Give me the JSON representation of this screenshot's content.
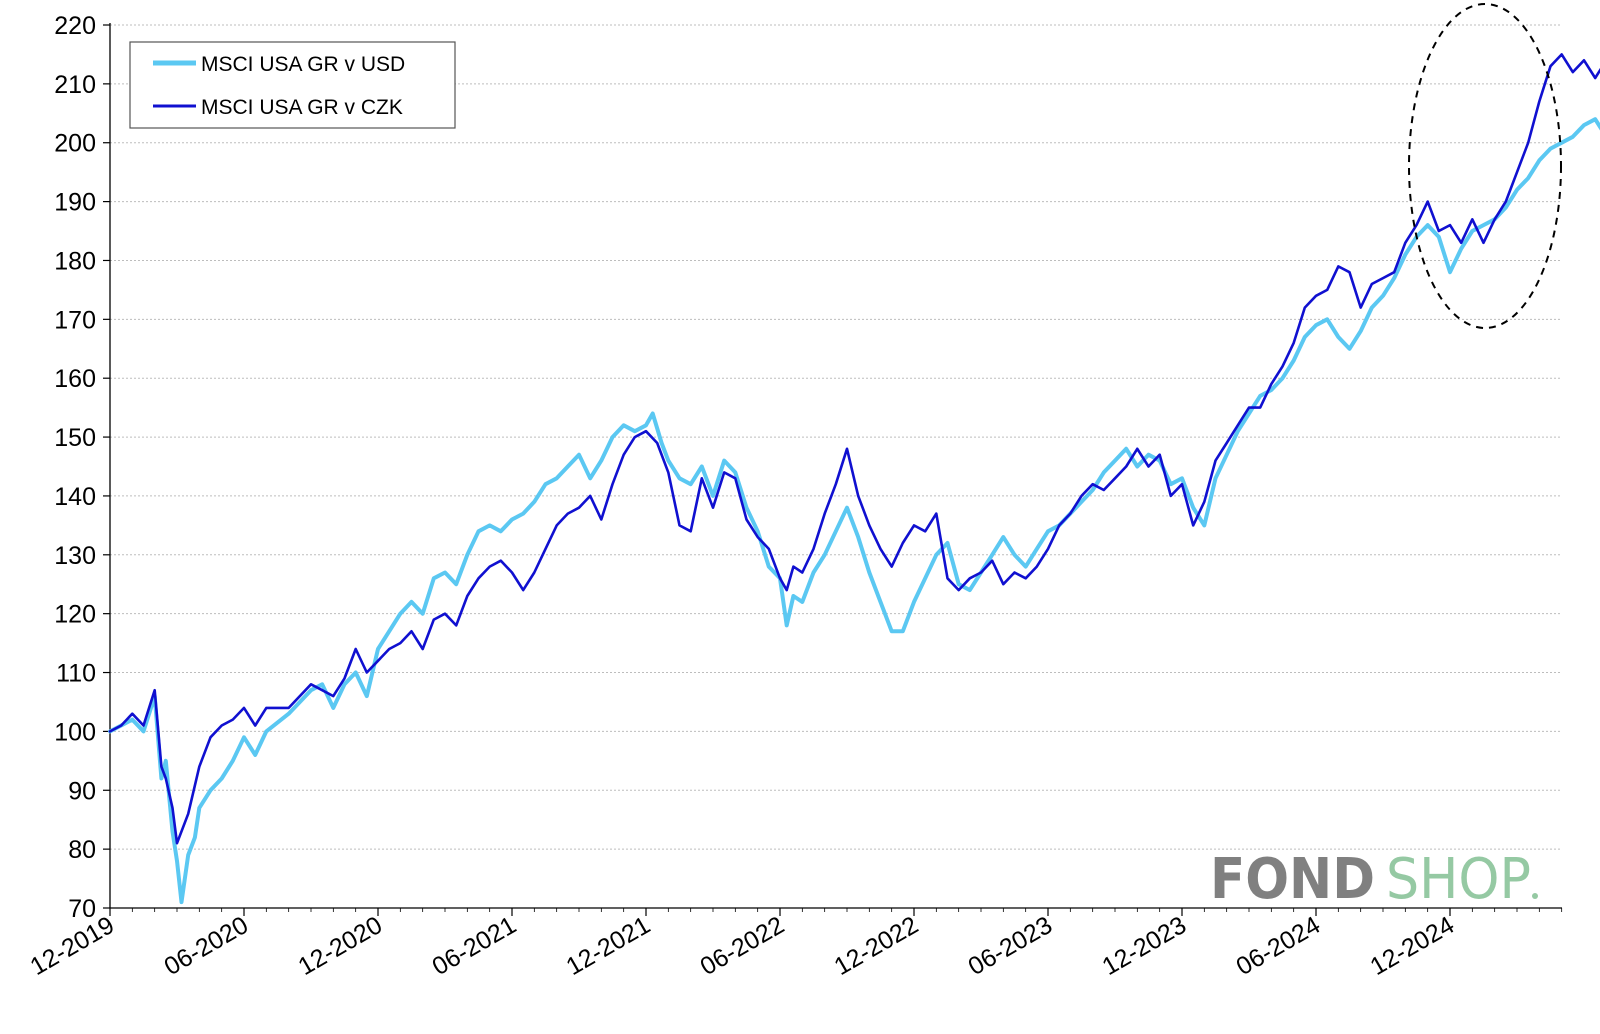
{
  "chart_data": {
    "type": "line",
    "title": "",
    "xlabel": "",
    "ylabel": "",
    "ylim": [
      70,
      220
    ],
    "yticks": [
      70,
      80,
      90,
      100,
      110,
      120,
      130,
      140,
      150,
      160,
      170,
      180,
      190,
      200,
      210,
      220
    ],
    "x_tick_labels": [
      "12-2019",
      "06-2020",
      "12-2020",
      "06-2021",
      "12-2021",
      "06-2022",
      "12-2022",
      "06-2023",
      "12-2023",
      "06-2024",
      "12-2024"
    ],
    "x_range_months": [
      0,
      65
    ],
    "grid": "horizontal-dotted",
    "legend_position": "top-left",
    "series": [
      {
        "name": "MSCI USA GR v USD",
        "color": "#5bc8f2",
        "points": [
          [
            0,
            100
          ],
          [
            0.5,
            101
          ],
          [
            1,
            102
          ],
          [
            1.5,
            100
          ],
          [
            2,
            106
          ],
          [
            2.3,
            92
          ],
          [
            2.5,
            95
          ],
          [
            2.8,
            83
          ],
          [
            3,
            78
          ],
          [
            3.2,
            71
          ],
          [
            3.5,
            79
          ],
          [
            3.8,
            82
          ],
          [
            4,
            87
          ],
          [
            4.5,
            90
          ],
          [
            5,
            92
          ],
          [
            5.5,
            95
          ],
          [
            6,
            99
          ],
          [
            6.5,
            96
          ],
          [
            7,
            100
          ],
          [
            8,
            103
          ],
          [
            9,
            107
          ],
          [
            9.5,
            108
          ],
          [
            10,
            104
          ],
          [
            10.5,
            108
          ],
          [
            11,
            110
          ],
          [
            11.5,
            106
          ],
          [
            12,
            114
          ],
          [
            12.5,
            117
          ],
          [
            13,
            120
          ],
          [
            13.5,
            122
          ],
          [
            14,
            120
          ],
          [
            14.5,
            126
          ],
          [
            15,
            127
          ],
          [
            15.5,
            125
          ],
          [
            16,
            130
          ],
          [
            16.5,
            134
          ],
          [
            17,
            135
          ],
          [
            17.5,
            134
          ],
          [
            18,
            136
          ],
          [
            18.5,
            137
          ],
          [
            19,
            139
          ],
          [
            19.5,
            142
          ],
          [
            20,
            143
          ],
          [
            20.5,
            145
          ],
          [
            21,
            147
          ],
          [
            21.5,
            143
          ],
          [
            22,
            146
          ],
          [
            22.5,
            150
          ],
          [
            23,
            152
          ],
          [
            23.5,
            151
          ],
          [
            24,
            152
          ],
          [
            24.3,
            154
          ],
          [
            24.7,
            149
          ],
          [
            25,
            146
          ],
          [
            25.5,
            143
          ],
          [
            26,
            142
          ],
          [
            26.5,
            145
          ],
          [
            27,
            140
          ],
          [
            27.5,
            146
          ],
          [
            28,
            144
          ],
          [
            28.5,
            138
          ],
          [
            29,
            134
          ],
          [
            29.5,
            128
          ],
          [
            30,
            126
          ],
          [
            30.3,
            118
          ],
          [
            30.6,
            123
          ],
          [
            31,
            122
          ],
          [
            31.5,
            127
          ],
          [
            32,
            130
          ],
          [
            32.5,
            134
          ],
          [
            33,
            138
          ],
          [
            33.5,
            133
          ],
          [
            34,
            127
          ],
          [
            34.5,
            122
          ],
          [
            35,
            117
          ],
          [
            35.5,
            117
          ],
          [
            36,
            122
          ],
          [
            36.5,
            126
          ],
          [
            37,
            130
          ],
          [
            37.5,
            132
          ],
          [
            38,
            125
          ],
          [
            38.5,
            124
          ],
          [
            39,
            127
          ],
          [
            39.5,
            130
          ],
          [
            40,
            133
          ],
          [
            40.5,
            130
          ],
          [
            41,
            128
          ],
          [
            41.5,
            131
          ],
          [
            42,
            134
          ],
          [
            42.5,
            135
          ],
          [
            43,
            137
          ],
          [
            43.5,
            139
          ],
          [
            44,
            141
          ],
          [
            44.5,
            144
          ],
          [
            45,
            146
          ],
          [
            45.5,
            148
          ],
          [
            46,
            145
          ],
          [
            46.5,
            147
          ],
          [
            47,
            146
          ],
          [
            47.5,
            142
          ],
          [
            48,
            143
          ],
          [
            48.5,
            138
          ],
          [
            49,
            135
          ],
          [
            49.5,
            143
          ],
          [
            50,
            147
          ],
          [
            50.5,
            151
          ],
          [
            51,
            154
          ],
          [
            51.5,
            157
          ],
          [
            52,
            158
          ],
          [
            52.5,
            160
          ],
          [
            53,
            163
          ],
          [
            53.5,
            167
          ],
          [
            54,
            169
          ],
          [
            54.5,
            170
          ],
          [
            55,
            167
          ],
          [
            55.5,
            165
          ],
          [
            56,
            168
          ],
          [
            56.5,
            172
          ],
          [
            57,
            174
          ],
          [
            57.5,
            177
          ],
          [
            58,
            181
          ],
          [
            58.5,
            184
          ],
          [
            59,
            186
          ],
          [
            59.5,
            184
          ],
          [
            60,
            178
          ],
          [
            60.5,
            182
          ],
          [
            61,
            185
          ],
          [
            61.5,
            186
          ],
          [
            62,
            187
          ],
          [
            62.5,
            189
          ],
          [
            63,
            192
          ],
          [
            63.5,
            194
          ],
          [
            64,
            197
          ],
          [
            64.5,
            199
          ],
          [
            65,
            200
          ],
          [
            65.5,
            201
          ],
          [
            66,
            203
          ],
          [
            66.5,
            204
          ],
          [
            67,
            201
          ],
          [
            67.5,
            198
          ],
          [
            68,
            196
          ],
          [
            68.5,
            201
          ],
          [
            69,
            205
          ],
          [
            69.5,
            203
          ],
          [
            70,
            205
          ],
          [
            70.5,
            198
          ],
          [
            71,
            190
          ],
          [
            71.5,
            189
          ],
          [
            72,
            188
          ],
          [
            72.3,
            171
          ],
          [
            72.6,
            179
          ],
          [
            73,
            178
          ],
          [
            73.5,
            182
          ],
          [
            74,
            188
          ],
          [
            74.5,
            191
          ],
          [
            75,
            195
          ],
          [
            75.3,
            200
          ],
          [
            75.6,
            197
          ],
          [
            76,
            200
          ]
        ]
      },
      {
        "name": "MSCI USA GR v CZK",
        "color": "#1010d0",
        "points": [
          [
            0,
            100
          ],
          [
            0.5,
            101
          ],
          [
            1,
            103
          ],
          [
            1.5,
            101
          ],
          [
            2,
            107
          ],
          [
            2.3,
            94
          ],
          [
            2.5,
            92
          ],
          [
            2.8,
            87
          ],
          [
            3,
            81
          ],
          [
            3.5,
            86
          ],
          [
            4,
            94
          ],
          [
            4.5,
            99
          ],
          [
            5,
            101
          ],
          [
            5.5,
            102
          ],
          [
            6,
            104
          ],
          [
            6.5,
            101
          ],
          [
            7,
            104
          ],
          [
            8,
            104
          ],
          [
            9,
            108
          ],
          [
            9.5,
            107
          ],
          [
            10,
            106
          ],
          [
            10.5,
            109
          ],
          [
            11,
            114
          ],
          [
            11.5,
            110
          ],
          [
            12,
            112
          ],
          [
            12.5,
            114
          ],
          [
            13,
            115
          ],
          [
            13.5,
            117
          ],
          [
            14,
            114
          ],
          [
            14.5,
            119
          ],
          [
            15,
            120
          ],
          [
            15.5,
            118
          ],
          [
            16,
            123
          ],
          [
            16.5,
            126
          ],
          [
            17,
            128
          ],
          [
            17.5,
            129
          ],
          [
            18,
            127
          ],
          [
            18.5,
            124
          ],
          [
            19,
            127
          ],
          [
            19.5,
            131
          ],
          [
            20,
            135
          ],
          [
            20.5,
            137
          ],
          [
            21,
            138
          ],
          [
            21.5,
            140
          ],
          [
            22,
            136
          ],
          [
            22.5,
            142
          ],
          [
            23,
            147
          ],
          [
            23.5,
            150
          ],
          [
            24,
            151
          ],
          [
            24.5,
            149
          ],
          [
            25,
            144
          ],
          [
            25.5,
            135
          ],
          [
            26,
            134
          ],
          [
            26.5,
            143
          ],
          [
            27,
            138
          ],
          [
            27.5,
            144
          ],
          [
            28,
            143
          ],
          [
            28.5,
            136
          ],
          [
            29,
            133
          ],
          [
            29.5,
            131
          ],
          [
            30,
            126
          ],
          [
            30.3,
            124
          ],
          [
            30.6,
            128
          ],
          [
            31,
            127
          ],
          [
            31.5,
            131
          ],
          [
            32,
            137
          ],
          [
            32.5,
            142
          ],
          [
            33,
            148
          ],
          [
            33.5,
            140
          ],
          [
            34,
            135
          ],
          [
            34.5,
            131
          ],
          [
            35,
            128
          ],
          [
            35.5,
            132
          ],
          [
            36,
            135
          ],
          [
            36.5,
            134
          ],
          [
            37,
            137
          ],
          [
            37.5,
            126
          ],
          [
            38,
            124
          ],
          [
            38.5,
            126
          ],
          [
            39,
            127
          ],
          [
            39.5,
            129
          ],
          [
            40,
            125
          ],
          [
            40.5,
            127
          ],
          [
            41,
            126
          ],
          [
            41.5,
            128
          ],
          [
            42,
            131
          ],
          [
            42.5,
            135
          ],
          [
            43,
            137
          ],
          [
            43.5,
            140
          ],
          [
            44,
            142
          ],
          [
            44.5,
            141
          ],
          [
            45,
            143
          ],
          [
            45.5,
            145
          ],
          [
            46,
            148
          ],
          [
            46.5,
            145
          ],
          [
            47,
            147
          ],
          [
            47.5,
            140
          ],
          [
            48,
            142
          ],
          [
            48.5,
            135
          ],
          [
            49,
            139
          ],
          [
            49.5,
            146
          ],
          [
            50,
            149
          ],
          [
            50.5,
            152
          ],
          [
            51,
            155
          ],
          [
            51.5,
            155
          ],
          [
            52,
            159
          ],
          [
            52.5,
            162
          ],
          [
            53,
            166
          ],
          [
            53.5,
            172
          ],
          [
            54,
            174
          ],
          [
            54.5,
            175
          ],
          [
            55,
            179
          ],
          [
            55.5,
            178
          ],
          [
            56,
            172
          ],
          [
            56.5,
            176
          ],
          [
            57,
            177
          ],
          [
            57.5,
            178
          ],
          [
            58,
            183
          ],
          [
            58.5,
            186
          ],
          [
            59,
            190
          ],
          [
            59.5,
            185
          ],
          [
            60,
            186
          ],
          [
            60.5,
            183
          ],
          [
            61,
            187
          ],
          [
            61.5,
            183
          ],
          [
            62,
            187
          ],
          [
            62.5,
            190
          ],
          [
            63,
            195
          ],
          [
            63.5,
            200
          ],
          [
            64,
            207
          ],
          [
            64.5,
            213
          ],
          [
            65,
            215
          ],
          [
            65.5,
            212
          ],
          [
            66,
            214
          ],
          [
            66.5,
            211
          ],
          [
            67,
            214
          ],
          [
            67.5,
            216
          ],
          [
            68,
            215
          ],
          [
            68.5,
            217
          ],
          [
            69,
            218
          ],
          [
            69.5,
            217
          ],
          [
            70,
            213
          ],
          [
            70.5,
            200
          ],
          [
            71,
            193
          ],
          [
            71.5,
            192
          ],
          [
            72,
            190
          ],
          [
            72.3,
            172
          ],
          [
            72.6,
            176
          ],
          [
            73,
            175
          ],
          [
            73.5,
            182
          ],
          [
            74,
            187
          ],
          [
            74.5,
            192
          ],
          [
            75,
            197
          ],
          [
            75.3,
            193
          ],
          [
            75.6,
            190
          ],
          [
            76,
            193
          ]
        ]
      }
    ]
  },
  "legend": {
    "items": [
      {
        "label": "MSCI USA GR v USD"
      },
      {
        "label": "MSCI USA GR v CZK"
      }
    ]
  },
  "brand": {
    "part1": "FOND",
    "part2": "SHOP"
  },
  "colors": {
    "usd": "#5bc8f2",
    "czk": "#1010d0",
    "grid": "#bdbdbd",
    "brand_gray": "#808080",
    "brand_green": "#95c9a3"
  }
}
